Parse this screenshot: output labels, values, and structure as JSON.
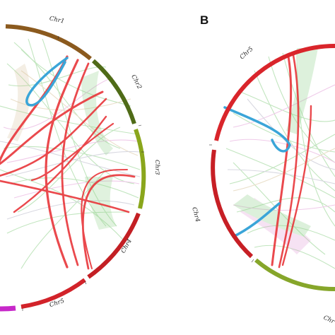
{
  "figure": {
    "panel_a": {
      "letter": "",
      "chromosomes": [
        {
          "label": "Chr1",
          "color": "#8b5a1e"
        },
        {
          "label": "Chr2",
          "color": "#4f6b17"
        },
        {
          "label": "Chr3",
          "color": "#8aa61c"
        },
        {
          "label": "Chr4",
          "color": "#c31f24"
        },
        {
          "label": "Chr5",
          "color": "#d2232a"
        },
        {
          "label": "",
          "color": "#c728c9"
        }
      ]
    },
    "panel_b": {
      "letter": "B",
      "chromosomes": [
        {
          "label": "Chr5",
          "color": "#d9252b"
        },
        {
          "label": "Chr4",
          "color": "#c71f25"
        },
        {
          "label": "Chr",
          "color": "#86a62a"
        }
      ]
    },
    "link_colors": {
      "highlight_red": "#e8363a",
      "highlight_blue": "#3aa5d8",
      "background_green": "#8fd08a",
      "background_pink": "#e3a0d8",
      "background_tan": "#d9c6a0",
      "background_gray": "#b9b9c9"
    }
  }
}
